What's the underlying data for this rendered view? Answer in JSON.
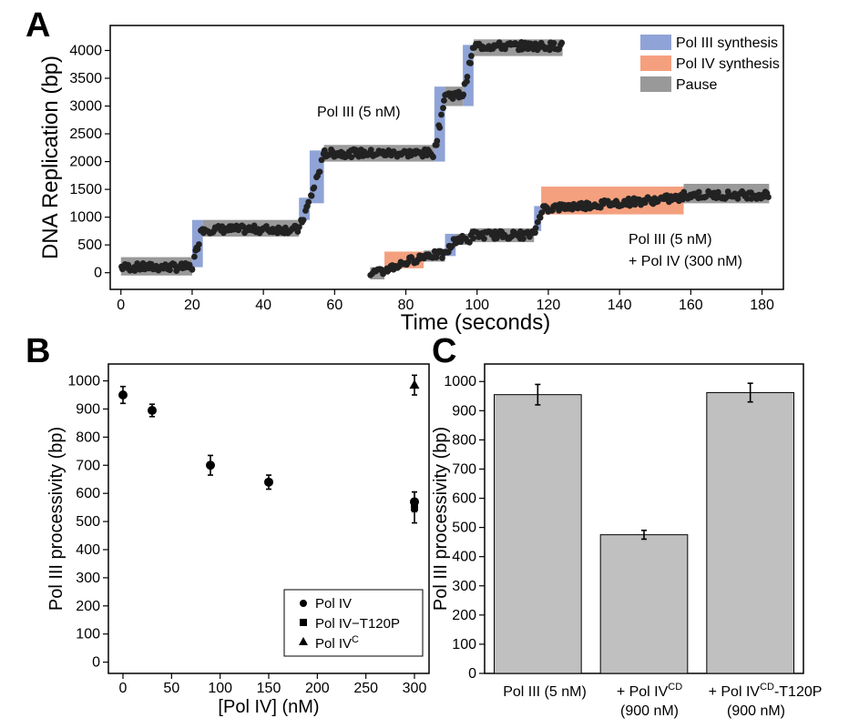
{
  "panel_a": {
    "letter": "A",
    "legend": [
      {
        "label": "Pol III synthesis",
        "color": "#8fa3d6"
      },
      {
        "label": "Pol IV synthesis",
        "color": "#f4a07e"
      },
      {
        "label": "Pause",
        "color": "#999999"
      }
    ],
    "annotation_top": "Pol III (5 nM)",
    "annotation_bottom_line1": "Pol III (5 nM)",
    "annotation_bottom_line2": "+ Pol IV (300 nM)"
  },
  "panel_b": {
    "letter": "B",
    "legend": [
      {
        "label": "Pol IV",
        "marker": "circle"
      },
      {
        "label": "Pol IV−T120P",
        "marker": "square"
      },
      {
        "label": "Pol IV",
        "superscript": "C",
        "marker": "triangle"
      }
    ]
  },
  "panel_c": {
    "letter": "C",
    "bar_labels": [
      {
        "line1": "Pol III (5 nM)",
        "line2": ""
      },
      {
        "line1": "+ Pol IV",
        "sup": "CD",
        "line1_tail": "",
        "line2": "(900 nM)"
      },
      {
        "line1": "+ Pol IV",
        "sup": "CD",
        "line1_tail": "-T120P",
        "line2": "(900 nM)"
      }
    ]
  },
  "chart_data": [
    {
      "type": "scatter",
      "panel": "A",
      "xlabel": "Time (seconds)",
      "ylabel": "DNA Replication (bp)",
      "xlim": [
        -3,
        186
      ],
      "ylim": [
        -300,
        4450
      ],
      "xticks": [
        0,
        20,
        40,
        60,
        80,
        100,
        120,
        140,
        160,
        180
      ],
      "yticks": [
        0,
        500,
        1000,
        1500,
        2000,
        2500,
        3000,
        3500,
        4000
      ],
      "legend_position": "top-right",
      "regions": [
        {
          "kind": "pause",
          "x": [
            0,
            20
          ],
          "y": [
            -50,
            280
          ]
        },
        {
          "kind": "pol3",
          "x": [
            20,
            23
          ],
          "y": [
            100,
            950
          ]
        },
        {
          "kind": "pause",
          "x": [
            23,
            50
          ],
          "y": [
            650,
            950
          ]
        },
        {
          "kind": "pol3",
          "x": [
            50,
            53
          ],
          "y": [
            950,
            1350
          ]
        },
        {
          "kind": "pol3",
          "x": [
            53,
            57
          ],
          "y": [
            1250,
            2200
          ]
        },
        {
          "kind": "pause",
          "x": [
            57,
            88
          ],
          "y": [
            2000,
            2300
          ]
        },
        {
          "kind": "pol3",
          "x": [
            88,
            91
          ],
          "y": [
            2000,
            3350
          ]
        },
        {
          "kind": "pause",
          "x": [
            91,
            96
          ],
          "y": [
            3000,
            3350
          ]
        },
        {
          "kind": "pol3",
          "x": [
            96,
            99
          ],
          "y": [
            3000,
            4100
          ]
        },
        {
          "kind": "pause",
          "x": [
            99,
            124
          ],
          "y": [
            3900,
            4200
          ]
        },
        {
          "kind": "pause",
          "x": [
            70,
            74
          ],
          "y": [
            -120,
            100
          ]
        },
        {
          "kind": "pol4",
          "x": [
            74,
            85
          ],
          "y": [
            80,
            380
          ]
        },
        {
          "kind": "pause",
          "x": [
            85,
            91
          ],
          "y": [
            200,
            400
          ]
        },
        {
          "kind": "pol3",
          "x": [
            91,
            94
          ],
          "y": [
            300,
            700
          ]
        },
        {
          "kind": "pause",
          "x": [
            94,
            98
          ],
          "y": [
            500,
            700
          ]
        },
        {
          "kind": "pause",
          "x": [
            98,
            116
          ],
          "y": [
            550,
            800
          ]
        },
        {
          "kind": "pol3",
          "x": [
            116,
            118
          ],
          "y": [
            750,
            1200
          ]
        },
        {
          "kind": "pol4",
          "x": [
            118,
            158
          ],
          "y": [
            1050,
            1550
          ]
        },
        {
          "kind": "pause",
          "x": [
            158,
            182
          ],
          "y": [
            1250,
            1600
          ]
        }
      ],
      "series": [
        {
          "segments": [
            {
              "x": [
                0,
                20
              ],
              "y": 100
            },
            {
              "x": [
                20,
                23
              ],
              "y": [
                100,
                850
              ]
            },
            {
              "x": [
                23,
                50
              ],
              "y": 780
            },
            {
              "x": [
                50,
                53
              ],
              "y": [
                780,
                1300
              ]
            },
            {
              "x": [
                53,
                57
              ],
              "y": [
                1300,
                2100
              ]
            },
            {
              "x": [
                57,
                88
              ],
              "y": 2150
            },
            {
              "x": [
                88,
                91
              ],
              "y": [
                2150,
                3200
              ]
            },
            {
              "x": [
                91,
                96
              ],
              "y": 3200
            },
            {
              "x": [
                96,
                99
              ],
              "y": [
                3200,
                4050
              ]
            },
            {
              "x": [
                99,
                124
              ],
              "y": 4080
            }
          ]
        },
        {
          "segments": [
            {
              "x": [
                70,
                74
              ],
              "y": 0
            },
            {
              "x": [
                74,
                85
              ],
              "y": [
                50,
                300
              ]
            },
            {
              "x": [
                85,
                91
              ],
              "y": 320
            },
            {
              "x": [
                91,
                94
              ],
              "y": [
                320,
                600
              ]
            },
            {
              "x": [
                94,
                98
              ],
              "y": 600
            },
            {
              "x": [
                98,
                116
              ],
              "y": 680
            },
            {
              "x": [
                116,
                118
              ],
              "y": [
                700,
                1100
              ]
            },
            {
              "x": [
                118,
                158
              ],
              "y": [
                1150,
                1350
              ]
            },
            {
              "x": [
                158,
                182
              ],
              "y": 1400
            }
          ]
        }
      ]
    },
    {
      "type": "scatter",
      "panel": "B",
      "xlabel": "[Pol IV] (nM)",
      "ylabel": "Pol III processivity (bp)",
      "xlim": [
        -15,
        315
      ],
      "ylim": [
        -40,
        1060
      ],
      "xticks": [
        0,
        50,
        100,
        150,
        200,
        250,
        300
      ],
      "yticks": [
        0,
        100,
        200,
        300,
        400,
        500,
        600,
        700,
        800,
        900,
        1000
      ],
      "legend_position": "bottom-right",
      "series": [
        {
          "name": "Pol IV",
          "marker": "circle",
          "points": [
            {
              "x": 0,
              "y": 950,
              "err": 30
            },
            {
              "x": 30,
              "y": 895,
              "err": 22
            },
            {
              "x": 90,
              "y": 700,
              "err": 35
            },
            {
              "x": 150,
              "y": 640,
              "err": 25
            },
            {
              "x": 300,
              "y": 570,
              "err": 35
            }
          ]
        },
        {
          "name": "Pol IV−T120P",
          "marker": "square",
          "points": [
            {
              "x": 300,
              "y": 550,
              "err": 55
            }
          ]
        },
        {
          "name": "Pol IV C",
          "marker": "triangle",
          "points": [
            {
              "x": 300,
              "y": 985,
              "err": 35
            }
          ]
        }
      ]
    },
    {
      "type": "bar",
      "panel": "C",
      "ylabel": "Pol III processivity (bp)",
      "ylim": [
        0,
        1060
      ],
      "yticks": [
        0,
        100,
        200,
        300,
        400,
        500,
        600,
        700,
        800,
        900,
        1000
      ],
      "categories": [
        "Pol III (5 nM)",
        "+ Pol IV CD (900 nM)",
        "+ Pol IV CD -T120P (900 nM)"
      ],
      "values": [
        955,
        475,
        962
      ],
      "errors": [
        35,
        15,
        32
      ],
      "bar_color": "#c0c0c0"
    }
  ]
}
